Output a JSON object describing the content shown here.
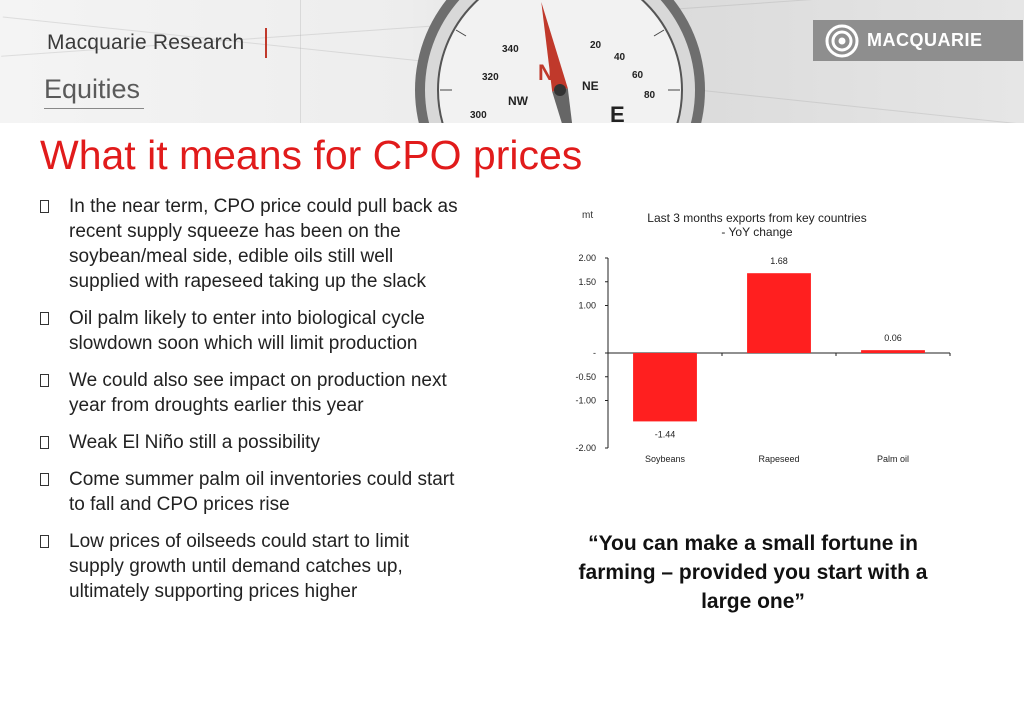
{
  "header": {
    "brand_title": "Macquarie Research",
    "brand_sub": "Equities",
    "logo_text": "MACQUARIE",
    "compass_labels": [
      "N",
      "NE",
      "NW",
      "E",
      "300",
      "320",
      "340",
      "20",
      "40",
      "60",
      "80"
    ]
  },
  "title": "What it means for CPO prices",
  "bullets": [
    {
      "text": "In the near term, CPO price could pull back as recent supply squeeze has been on the soybean/meal side, edible oils still well supplied with rapeseed taking up the slack"
    },
    {
      "text": "Oil palm likely to enter into biological cycle slowdown soon which will limit production"
    },
    {
      "text": "We could also see impact on production next year from droughts earlier this year"
    },
    {
      "text": "Weak El Niño still a possibility"
    },
    {
      "text": "Come summer palm oil inventories could start to fall and CPO prices rise"
    },
    {
      "text": "Low prices of oilseeds could start to limit supply growth until demand catches up, ultimately supporting prices higher"
    }
  ],
  "chart_data": {
    "type": "bar",
    "title": "Last 3 months exports from key countries",
    "subtitle": "- YoY change",
    "ylabel": "mt",
    "categories": [
      "Soybeans",
      "Rapeseed",
      "Palm oil"
    ],
    "values": [
      -1.44,
      1.68,
      0.06
    ],
    "data_labels": [
      "-1.44",
      "1.68",
      "0.06"
    ],
    "ylim": [
      -2.0,
      2.0
    ],
    "y_ticks": [
      {
        "value": 2.0,
        "label": "2.00"
      },
      {
        "value": 1.5,
        "label": "1.50"
      },
      {
        "value": 1.0,
        "label": "1.00"
      },
      {
        "value": 0.0,
        "label": "-"
      },
      {
        "value": -0.5,
        "label": "-0.50"
      },
      {
        "value": -1.0,
        "label": "-1.00"
      },
      {
        "value": -2.0,
        "label": "-2.00"
      }
    ],
    "bar_color": "#ff1f1f",
    "grid": false,
    "legend": "none"
  },
  "quote": "“You can make a small fortune in farming – provided you start with a large one”",
  "colors": {
    "title": "#e11b1b",
    "accent_bar": "#c0392b",
    "logo_bg": "#8e8e8e"
  }
}
